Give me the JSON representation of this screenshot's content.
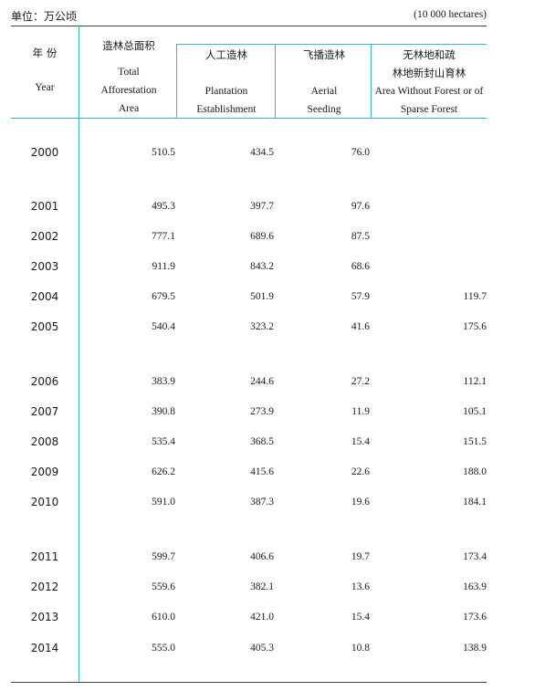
{
  "unit": {
    "cn": "单位：万公顷",
    "en": "(10 000 hectares)"
  },
  "headers": {
    "year": {
      "cn": "年 份",
      "en": "Year"
    },
    "total": {
      "cn": "造林总面积",
      "en": [
        "Total",
        "Afforestation",
        "Area"
      ]
    },
    "plant": {
      "cn": "人工造林",
      "en": [
        "Plantation",
        "Establishment"
      ]
    },
    "aerial": {
      "cn": "飞播造林",
      "en": [
        "Aerial",
        "Seeding"
      ]
    },
    "noforest": {
      "cn": [
        "无林地和疏",
        "林地新封山育林"
      ],
      "en": [
        "Area Without Forest or of",
        "Sparse Forest"
      ]
    }
  },
  "rows": [
    {
      "year": "2000",
      "total": "510.5",
      "plant": "434.5",
      "aerial": "76.0",
      "noforest": ""
    },
    {
      "year": "2001",
      "total": "495.3",
      "plant": "397.7",
      "aerial": "97.6",
      "noforest": ""
    },
    {
      "year": "2002",
      "total": "777.1",
      "plant": "689.6",
      "aerial": "87.5",
      "noforest": ""
    },
    {
      "year": "2003",
      "total": "911.9",
      "plant": "843.2",
      "aerial": "68.6",
      "noforest": ""
    },
    {
      "year": "2004",
      "total": "679.5",
      "plant": "501.9",
      "aerial": "57.9",
      "noforest": "119.7"
    },
    {
      "year": "2005",
      "total": "540.4",
      "plant": "323.2",
      "aerial": "41.6",
      "noforest": "175.6"
    },
    {
      "year": "2006",
      "total": "383.9",
      "plant": "244.6",
      "aerial": "27.2",
      "noforest": "112.1"
    },
    {
      "year": "2007",
      "total": "390.8",
      "plant": "273.9",
      "aerial": "11.9",
      "noforest": "105.1"
    },
    {
      "year": "2008",
      "total": "535.4",
      "plant": "368.5",
      "aerial": "15.4",
      "noforest": "151.5"
    },
    {
      "year": "2009",
      "total": "626.2",
      "plant": "415.6",
      "aerial": "22.6",
      "noforest": "188.0"
    },
    {
      "year": "2010",
      "total": "591.0",
      "plant": "387.3",
      "aerial": "19.6",
      "noforest": "184.1"
    },
    {
      "year": "2011",
      "total": "599.7",
      "plant": "406.6",
      "aerial": "19.7",
      "noforest": "173.4"
    },
    {
      "year": "2012",
      "total": "559.6",
      "plant": "382.1",
      "aerial": "13.6",
      "noforest": "163.9"
    },
    {
      "year": "2013",
      "total": "610.0",
      "plant": "421.0",
      "aerial": "15.4",
      "noforest": "173.6"
    },
    {
      "year": "2014",
      "total": "555.0",
      "plant": "405.3",
      "aerial": "10.8",
      "noforest": "138.9"
    }
  ]
}
